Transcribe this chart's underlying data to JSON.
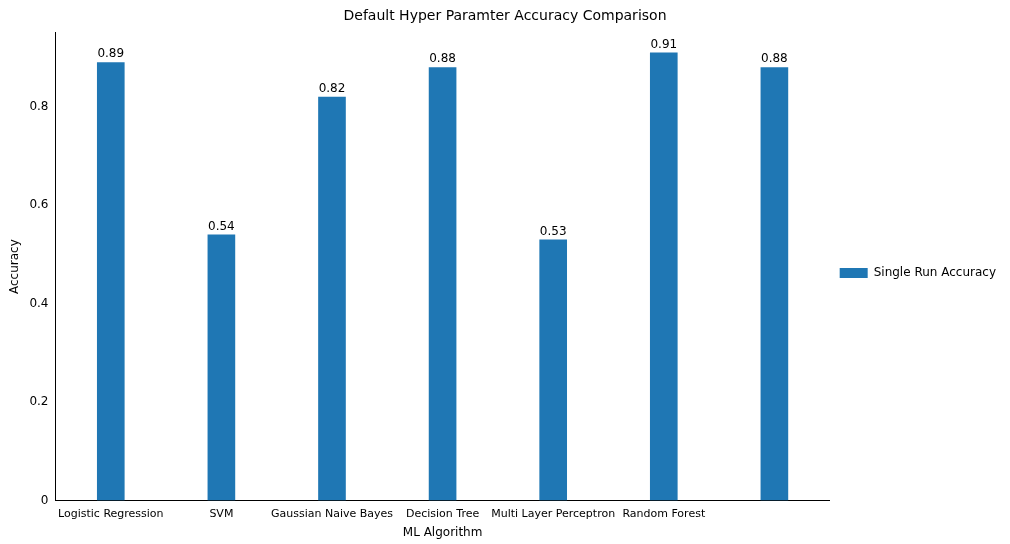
{
  "chart_data": {
    "type": "bar",
    "title": "Default Hyper Paramter Accuracy Comparison",
    "xlabel": "ML Algorithm",
    "ylabel": "Accuracy",
    "categories": [
      "Logistic Regression",
      "SVM",
      "Gaussian Naive Bayes",
      "Decision Tree",
      "Multi Layer Perceptron",
      "Random Forest",
      null
    ],
    "series": [
      {
        "name": "Single Run Accuracy",
        "color": "#1f77b4",
        "values": [
          0.89,
          0.54,
          0.82,
          0.88,
          0.53,
          0.91,
          0.88
        ]
      }
    ],
    "ylim": [
      0,
      0.95
    ],
    "yticks": [
      0,
      0.2,
      0.4,
      0.6,
      0.8
    ],
    "data_labels": true,
    "legend": "right",
    "grid": false
  }
}
